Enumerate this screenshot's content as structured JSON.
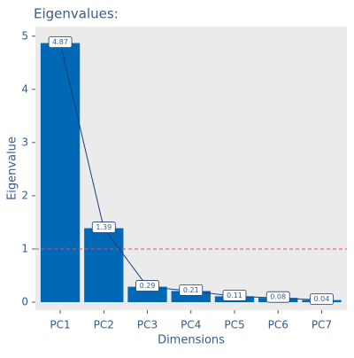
{
  "chart_data": {
    "type": "bar",
    "title": "Eigenvalues:",
    "x_label": "Dimensions",
    "y_label": "Eigenvalue",
    "categories": [
      "PC1",
      "PC2",
      "PC3",
      "PC4",
      "PC5",
      "PC6",
      "PC7"
    ],
    "values": [
      4.87,
      1.39,
      0.29,
      0.21,
      0.11,
      0.08,
      0.04
    ],
    "color": "#0068b4",
    "line_color": "#1a3f7a",
    "reference_line": 1,
    "reference_color": "#e05050",
    "ylim": [
      -0.15,
      5.18
    ],
    "yticks": [
      0,
      1,
      2,
      3,
      4,
      5
    ]
  }
}
